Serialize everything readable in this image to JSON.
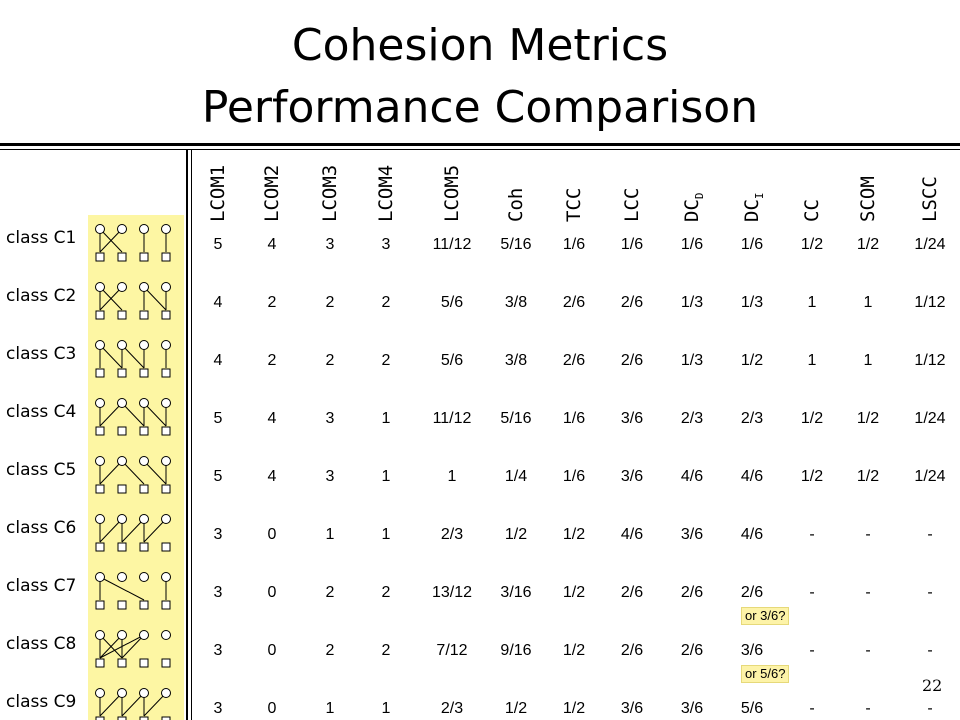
{
  "title": {
    "line1": "Cohesion Metrics",
    "line2": "Performance Comparison"
  },
  "page_number": "22",
  "columns": [
    {
      "pre": "LCOM1",
      "sub": ""
    },
    {
      "pre": "LCOM2",
      "sub": ""
    },
    {
      "pre": "LCOM3",
      "sub": ""
    },
    {
      "pre": "LCOM4",
      "sub": ""
    },
    {
      "pre": "LCOM5",
      "sub": ""
    },
    {
      "pre": "Coh",
      "sub": ""
    },
    {
      "pre": "TCC",
      "sub": ""
    },
    {
      "pre": "LCC",
      "sub": ""
    },
    {
      "pre": "DC",
      "sub": "D"
    },
    {
      "pre": "DC",
      "sub": "I"
    },
    {
      "pre": "CC",
      "sub": ""
    },
    {
      "pre": "SCOM",
      "sub": ""
    },
    {
      "pre": "LSCC",
      "sub": ""
    }
  ],
  "rows": [
    {
      "label": "class C1",
      "values": [
        "5",
        "4",
        "3",
        "3",
        "11/12",
        "5/16",
        "1/6",
        "1/6",
        "1/6",
        "1/6",
        "1/2",
        "1/2",
        "1/24"
      ]
    },
    {
      "label": "class C2",
      "values": [
        "4",
        "2",
        "2",
        "2",
        "5/6",
        "3/8",
        "2/6",
        "2/6",
        "1/3",
        "1/3",
        "1",
        "1",
        "1/12"
      ]
    },
    {
      "label": "class C3",
      "values": [
        "4",
        "2",
        "2",
        "2",
        "5/6",
        "3/8",
        "2/6",
        "2/6",
        "1/3",
        "1/2",
        "1",
        "1",
        "1/12"
      ]
    },
    {
      "label": "class C4",
      "values": [
        "5",
        "4",
        "3",
        "1",
        "11/12",
        "5/16",
        "1/6",
        "3/6",
        "2/3",
        "2/3",
        "1/2",
        "1/2",
        "1/24"
      ]
    },
    {
      "label": "class C5",
      "values": [
        "5",
        "4",
        "3",
        "1",
        "1",
        "1/4",
        "1/6",
        "3/6",
        "4/6",
        "4/6",
        "1/2",
        "1/2",
        "1/24"
      ]
    },
    {
      "label": "class C6",
      "values": [
        "3",
        "0",
        "1",
        "1",
        "2/3",
        "1/2",
        "1/2",
        "4/6",
        "3/6",
        "4/6",
        "-",
        "-",
        "-"
      ]
    },
    {
      "label": "class C7",
      "values": [
        "3",
        "0",
        "2",
        "2",
        "13/12",
        "3/16",
        "1/2",
        "2/6",
        "2/6",
        "2/6",
        "-",
        "-",
        "-"
      ]
    },
    {
      "label": "class C8",
      "values": [
        "3",
        "0",
        "2",
        "2",
        "7/12",
        "9/16",
        "1/2",
        "2/6",
        "2/6",
        "3/6",
        "-",
        "-",
        "-"
      ]
    },
    {
      "label": "class C9",
      "values": [
        "3",
        "0",
        "1",
        "1",
        "2/3",
        "1/2",
        "1/2",
        "3/6",
        "3/6",
        "5/6",
        "-",
        "-",
        "-"
      ]
    }
  ],
  "notes": [
    {
      "row": 6,
      "text": "or 3/6?"
    },
    {
      "row": 7,
      "text": "or 5/6?"
    }
  ],
  "colors": {
    "diagram_background": "#fdf6a3",
    "note_background": "#fdf3a8"
  }
}
